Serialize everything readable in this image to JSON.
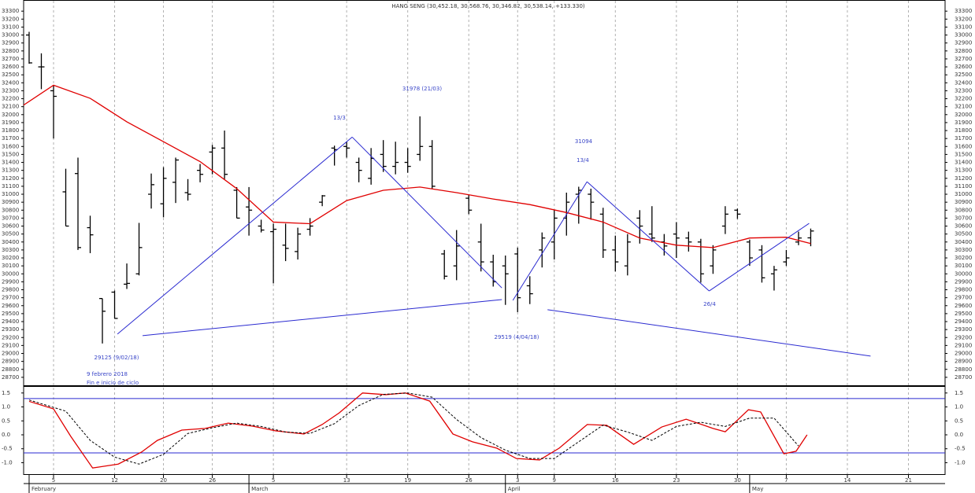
{
  "chart_data": [
    {
      "type": "ohlc",
      "title": "HANG SENG (30,452.18, 30,568.76, 30,346.82, 30,538.14, +133.330)",
      "open": [
        33000,
        32600,
        32300,
        31030,
        31260,
        30580,
        29690,
        29770,
        29870,
        30000,
        31000,
        30880,
        31150,
        31020,
        31300,
        31530,
        31580,
        31050,
        30840,
        30600,
        30530,
        30360,
        30280,
        30560,
        30900,
        31580,
        31600,
        31400,
        31200,
        31500,
        31350,
        31400,
        31500,
        31600,
        30250,
        30100,
        30950,
        30400,
        30150,
        30100,
        30250,
        29850,
        30300,
        30400,
        30700,
        31000,
        31000,
        30750,
        30300,
        30100,
        30700,
        30500,
        30400,
        30500,
        30450,
        30400,
        30100,
        30600,
        30800,
        30400,
        30300,
        30000,
        30150,
        30400,
        30452.18
      ],
      "high": [
        33040,
        32770,
        32370,
        31320,
        31460,
        30730,
        29690,
        29790,
        30130,
        30640,
        31260,
        31340,
        31460,
        31190,
        31380,
        31620,
        31800,
        31090,
        31090,
        30680,
        30630,
        30630,
        30580,
        30700,
        30990,
        31610,
        31660,
        31460,
        31580,
        31680,
        31660,
        31580,
        31978,
        31680,
        30300,
        30550,
        30990,
        30630,
        30240,
        30230,
        30330,
        29970,
        30520,
        30800,
        31020,
        31094,
        31070,
        30830,
        30480,
        30500,
        30800,
        30850,
        30500,
        30650,
        30530,
        30440,
        30360,
        30850,
        30820,
        30430,
        30360,
        30100,
        30300,
        30530,
        30568.76
      ],
      "low": [
        32640,
        32320,
        31700,
        30600,
        30300,
        30260,
        29125,
        29440,
        29810,
        29980,
        30820,
        30710,
        30890,
        30920,
        31150,
        31250,
        31190,
        30700,
        30480,
        30520,
        29880,
        30160,
        30180,
        30480,
        30850,
        31360,
        31460,
        31150,
        31120,
        31280,
        31250,
        31270,
        31420,
        31070,
        29930,
        29920,
        30750,
        30030,
        29840,
        29610,
        29519,
        29620,
        30080,
        30180,
        30480,
        30630,
        30680,
        30200,
        30030,
        29980,
        30380,
        30400,
        30230,
        30200,
        30280,
        29890,
        30000,
        30500,
        30690,
        30100,
        29890,
        29790,
        30100,
        30360,
        30346.82
      ],
      "close": [
        32650,
        32600,
        32230,
        30600,
        30330,
        30490,
        29530,
        29440,
        29880,
        30330,
        31120,
        31200,
        31430,
        31000,
        31250,
        31580,
        31250,
        30700,
        30800,
        30550,
        30560,
        30320,
        30500,
        30600,
        30980,
        31560,
        31580,
        31300,
        31450,
        31350,
        31400,
        31350,
        31600,
        31100,
        29970,
        30350,
        30800,
        30150,
        29900,
        30000,
        29700,
        29750,
        30450,
        30700,
        30900,
        31050,
        30900,
        30300,
        30150,
        30400,
        30600,
        30450,
        30350,
        30450,
        30400,
        30000,
        30300,
        30750,
        30750,
        30200,
        29950,
        30050,
        30200,
        30450,
        30538.14
      ],
      "bar_color": "#000000",
      "moving_average": {
        "color": "#e00000",
        "x": [
          -0.45,
          2,
          5,
          8,
          11,
          14,
          17,
          20,
          23,
          26,
          29,
          32,
          35,
          38,
          41,
          44,
          47,
          50,
          53,
          56,
          59,
          62,
          64
        ],
        "values": [
          32120,
          32370,
          32205,
          31910,
          31660,
          31410,
          31070,
          30650,
          30630,
          30920,
          31050,
          31090,
          31020,
          30940,
          30870,
          30770,
          30650,
          30450,
          30360,
          30330,
          30450,
          30460,
          30380
        ]
      },
      "trendlines": {
        "color": "#2a2ad0",
        "lines": [
          {
            "x": [
              7.23,
              26.45
            ],
            "y": [
              29243,
              31718
            ]
          },
          {
            "x": [
              26.45,
              38.71
            ],
            "y": [
              31718,
              29823
            ]
          },
          {
            "x": [
              9.29,
              38.71
            ],
            "y": [
              29224,
              29677
            ]
          },
          {
            "x": [
              39.61,
              45.68
            ],
            "y": [
              29667,
              31157
            ]
          },
          {
            "x": [
              45.68,
              55.68
            ],
            "y": [
              31157,
              29785
            ]
          },
          {
            "x": [
              55.68,
              63.87
            ],
            "y": [
              29785,
              30634
            ]
          },
          {
            "x": [
              42.45,
              68.9
            ],
            "y": [
              29549,
              28967
            ]
          }
        ]
      },
      "annotations": [
        "13/3",
        "31978 (21/03)",
        "31094",
        "13/4",
        "29125 (9/02/18)",
        "9 febrero 2018",
        "Fin e inicio de ciclo",
        "29519 (4/04/18)",
        "26/4"
      ],
      "xlim": [
        -0.45,
        75
      ],
      "ylim": [
        28600,
        33440
      ],
      "yticks": [
        28700,
        28800,
        28900,
        29000,
        29100,
        29200,
        29300,
        29400,
        29500,
        29600,
        29700,
        29800,
        29900,
        30000,
        30100,
        30200,
        30300,
        30400,
        30500,
        30600,
        30700,
        30800,
        30900,
        31000,
        31100,
        31200,
        31300,
        31400,
        31500,
        31600,
        31700,
        31800,
        31900,
        32000,
        32100,
        32200,
        32300,
        32400,
        32500,
        32600,
        32700,
        32800,
        32900,
        33000,
        33100,
        33200,
        33300
      ],
      "xticks": [
        {
          "value": 2,
          "label": "5"
        },
        {
          "value": 7,
          "label": "12"
        },
        {
          "value": 11,
          "label": "20"
        },
        {
          "value": 15,
          "label": "26"
        },
        {
          "value": 20,
          "label": "5"
        },
        {
          "value": 26,
          "label": "13"
        },
        {
          "value": 31,
          "label": "19"
        },
        {
          "value": 36,
          "label": "26"
        },
        {
          "value": 40,
          "label": "3"
        },
        {
          "value": 43,
          "label": "9"
        },
        {
          "value": 48,
          "label": "16"
        },
        {
          "value": 53,
          "label": "23"
        },
        {
          "value": 58,
          "label": "30"
        },
        {
          "value": 62,
          "label": "7"
        },
        {
          "value": 67,
          "label": "14"
        },
        {
          "value": 72,
          "label": "21"
        }
      ],
      "months": [
        {
          "value": 0,
          "label": "February"
        },
        {
          "value": 18,
          "label": "March"
        },
        {
          "value": 39,
          "label": "April"
        },
        {
          "value": 59,
          "label": "May"
        }
      ],
      "grid": true
    },
    {
      "type": "line",
      "xlim": [
        -0.45,
        75
      ],
      "ylim": [
        -1.41,
        1.72
      ],
      "yticks": [
        1.5,
        {
          "value": 1,
          "label": "1.0"
        },
        0.5,
        {
          "value": 0,
          "label": "0.0"
        },
        -0.5,
        {
          "value": -1,
          "label": "-1.0"
        }
      ],
      "levels": {
        "color": "#2a2ad0",
        "values": [
          1.3,
          -0.65
        ]
      },
      "series": [
        {
          "color": "#e00000",
          "dash": false,
          "x": [
            0,
            2,
            3.4,
            5.2,
            7.3,
            9.2,
            10.5,
            12.5,
            14.4,
            16.3,
            18.3,
            20.2,
            22.5,
            24,
            25.4,
            27.3,
            29.2,
            30.8,
            32.8,
            34.7,
            36.3,
            38.3,
            39.9,
            41.8,
            43.4,
            45.7,
            47.3,
            49.5,
            51.8,
            53.8,
            56,
            57,
            58.9,
            59.9,
            61.8,
            62.8,
            63.7
          ],
          "values": [
            1.2,
            0.93,
            -0.05,
            -1.19,
            -1.05,
            -0.62,
            -0.2,
            0.17,
            0.23,
            0.42,
            0.31,
            0.14,
            0.03,
            0.37,
            0.79,
            1.5,
            1.44,
            1.5,
            1.21,
            0.03,
            -0.25,
            -0.48,
            -0.85,
            -0.9,
            -0.48,
            0.37,
            0.34,
            -0.34,
            0.28,
            0.56,
            0.23,
            0.11,
            0.9,
            0.82,
            -0.68,
            -0.59,
            0
          ]
        },
        {
          "color": "#000000",
          "dash": true,
          "x": [
            0,
            3,
            5,
            7,
            9,
            11,
            13,
            15,
            17,
            19,
            21,
            23,
            25,
            27,
            29,
            31,
            33,
            35,
            37,
            39,
            41,
            43,
            45,
            47,
            49,
            51,
            53,
            55,
            57,
            59,
            61,
            63
          ],
          "values": [
            1.25,
            0.85,
            -0.2,
            -0.8,
            -1.05,
            -0.7,
            0.05,
            0.25,
            0.42,
            0.3,
            0.1,
            0.05,
            0.4,
            1.05,
            1.45,
            1.5,
            1.35,
            0.55,
            -0.1,
            -0.55,
            -0.85,
            -0.85,
            -0.25,
            0.35,
            0.1,
            -0.2,
            0.3,
            0.45,
            0.3,
            0.6,
            0.6,
            -0.4
          ]
        }
      ],
      "grid": true
    }
  ]
}
